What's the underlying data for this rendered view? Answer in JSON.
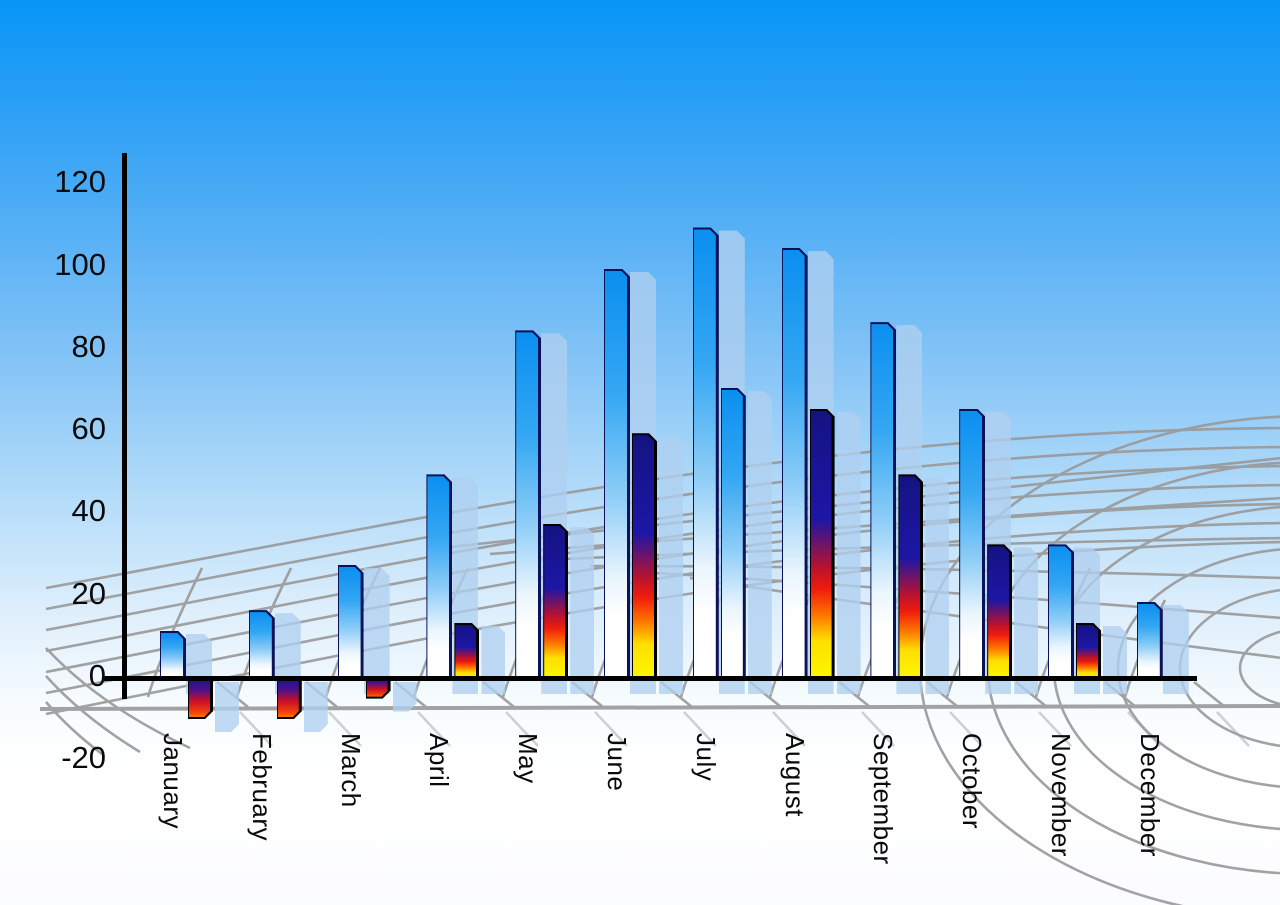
{
  "chart_data": {
    "type": "bar",
    "title": "",
    "categories": [
      "January",
      "February",
      "March",
      "April",
      "May",
      "June",
      "July",
      "August",
      "September",
      "October",
      "November",
      "December"
    ],
    "series": [
      {
        "name": "series_1_blue",
        "values": [
          11,
          16,
          27,
          49,
          84,
          99,
          109,
          104,
          86,
          65,
          32,
          18
        ]
      },
      {
        "name": "series_2_thermal",
        "values": [
          -10,
          -10,
          -5,
          13,
          37,
          59,
          70,
          65,
          49,
          32,
          13,
          null
        ]
      }
    ],
    "series2_point_styles": [
      "thermal",
      "thermal",
      "thermal",
      "thermal",
      "thermal",
      "thermal",
      "blue",
      "thermal",
      "thermal",
      "thermal",
      "thermal",
      null
    ],
    "y_ticks": [
      "120",
      "100",
      "80",
      "60",
      "40",
      "20",
      "0",
      "-20"
    ],
    "ylim": [
      -20,
      120
    ],
    "xlabel": "",
    "ylabel": "",
    "x_tick_rotation_deg": 90,
    "legend": "none",
    "grid": "perspective-floor-mesh"
  },
  "colors": {
    "sky_top": "#0795f7",
    "sky_bottom": "#ffffff",
    "bar_blue_top": "#0a8ff0",
    "bar_blue_bottom": "#ffffff",
    "bar_blue_edge": "#0c1258",
    "thermal_navy": "#141382",
    "thermal_red": "#f01c0c",
    "thermal_yellow": "#fcf800",
    "thermal_edge": "#000000",
    "echo_bar": "rgba(175,208,240,0.78)",
    "floor_grid": "#999999",
    "axis": "#000000",
    "label_text": "#0a0a0a"
  }
}
